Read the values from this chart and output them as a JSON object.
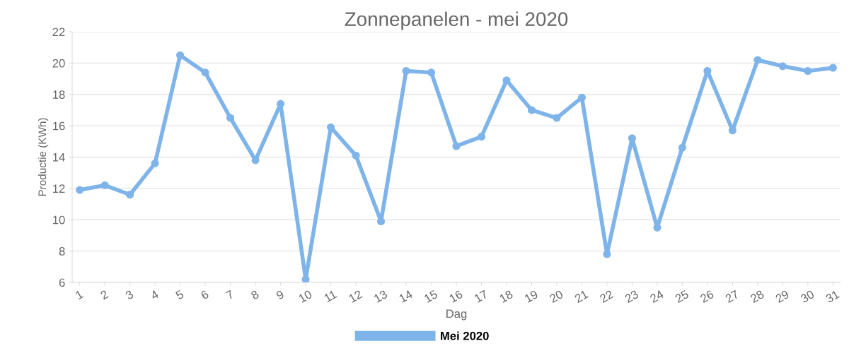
{
  "chart_data": {
    "type": "line",
    "title": "Zonnepanelen - mei 2020",
    "xlabel": "Dag",
    "ylabel": "Productie (KWh)",
    "categories": [
      "1",
      "2",
      "3",
      "4",
      "5",
      "6",
      "7",
      "8",
      "9",
      "10",
      "11",
      "12",
      "13",
      "14",
      "15",
      "16",
      "17",
      "18",
      "19",
      "20",
      "21",
      "22",
      "23",
      "24",
      "25",
      "26",
      "27",
      "28",
      "29",
      "30",
      "31"
    ],
    "series": [
      {
        "name": "Mei 2020",
        "color": "#7eb4ea",
        "values": [
          11.9,
          12.2,
          11.6,
          13.6,
          20.5,
          19.4,
          16.5,
          13.8,
          17.4,
          6.2,
          15.9,
          14.1,
          9.9,
          19.5,
          19.4,
          14.7,
          15.3,
          18.9,
          17.0,
          16.5,
          17.8,
          7.8,
          15.2,
          9.5,
          14.6,
          19.5,
          15.7,
          20.2,
          19.8,
          19.5,
          19.7
        ]
      }
    ],
    "ylim": [
      6,
      22
    ],
    "yticks": [
      6,
      8,
      10,
      12,
      14,
      16,
      18,
      20,
      22
    ],
    "grid": "y",
    "legend": "bottom",
    "marker": "circle",
    "line_style": "solid"
  }
}
